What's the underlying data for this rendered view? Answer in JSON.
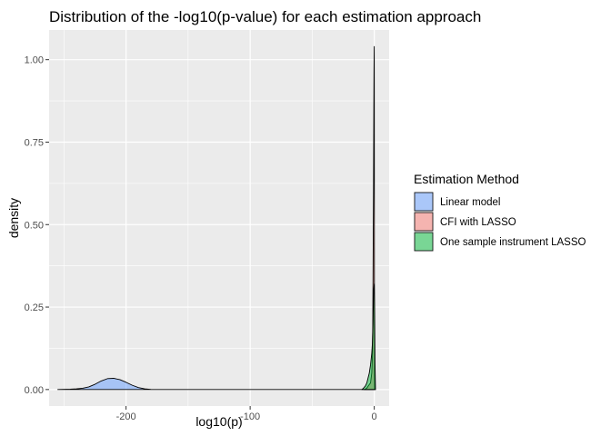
{
  "chart_data": {
    "type": "area",
    "title": "Distribution of the -log10(p-value) for each estimation approach",
    "xlabel": "log10(p)",
    "ylabel": "density",
    "xlim": [
      -262,
      12
    ],
    "ylim": [
      -0.05,
      1.09
    ],
    "x_ticks": [
      -200,
      -100,
      0
    ],
    "x_tick_labels": [
      "-200",
      "-100",
      "0"
    ],
    "y_ticks": [
      0.0,
      0.25,
      0.5,
      0.75,
      1.0
    ],
    "y_tick_labels": [
      "0.00",
      "0.25",
      "0.50",
      "0.75",
      "1.00"
    ],
    "grid": true,
    "panel_background": "#ebebeb",
    "legend": {
      "title": "Estimation Method",
      "position": "right"
    },
    "series": [
      {
        "name": "Linear model",
        "color": "#619cff",
        "x": [
          -255,
          -245,
          -240,
          -235,
          -230,
          -225,
          -220,
          -215,
          -210,
          -205,
          -200,
          -195,
          -190,
          -185,
          -180,
          -175,
          -150,
          -100,
          -50,
          -20,
          -10,
          -5,
          -3,
          -1,
          0,
          1
        ],
        "values": [
          0.0,
          0.001,
          0.002,
          0.004,
          0.008,
          0.016,
          0.026,
          0.033,
          0.034,
          0.03,
          0.022,
          0.013,
          0.006,
          0.002,
          0.0005,
          0.0,
          0.0,
          0.0,
          0.0,
          0.0,
          0.0,
          0.0,
          0.0,
          0.0,
          0.0,
          0.0
        ]
      },
      {
        "name": "CFI with LASSO",
        "color": "#f8766d",
        "x": [
          -8,
          -6,
          -5,
          -4,
          -3,
          -2,
          -1.5,
          -1.2,
          -1,
          -0.8,
          -0.6,
          -0.45,
          -0.3,
          -0.2,
          -0.12,
          -0.05,
          0,
          0.05,
          0.15,
          0.3
        ],
        "values": [
          0.0,
          0.004,
          0.01,
          0.015,
          0.02,
          0.05,
          0.1,
          0.2,
          0.33,
          0.48,
          0.6,
          0.75,
          0.88,
          0.96,
          1.0,
          1.03,
          1.04,
          0.9,
          0.2,
          0.0
        ]
      },
      {
        "name": "One sample instrument LASSO",
        "color": "#00ba38",
        "x": [
          -10,
          -9,
          -8,
          -7,
          -6,
          -5,
          -4,
          -3,
          -2,
          -1.5,
          -1,
          -0.5,
          0,
          0.3,
          0.6,
          1
        ],
        "values": [
          0.0,
          0.003,
          0.007,
          0.012,
          0.02,
          0.035,
          0.05,
          0.075,
          0.11,
          0.14,
          0.2,
          0.3,
          0.32,
          0.25,
          0.08,
          0.0
        ]
      }
    ]
  }
}
